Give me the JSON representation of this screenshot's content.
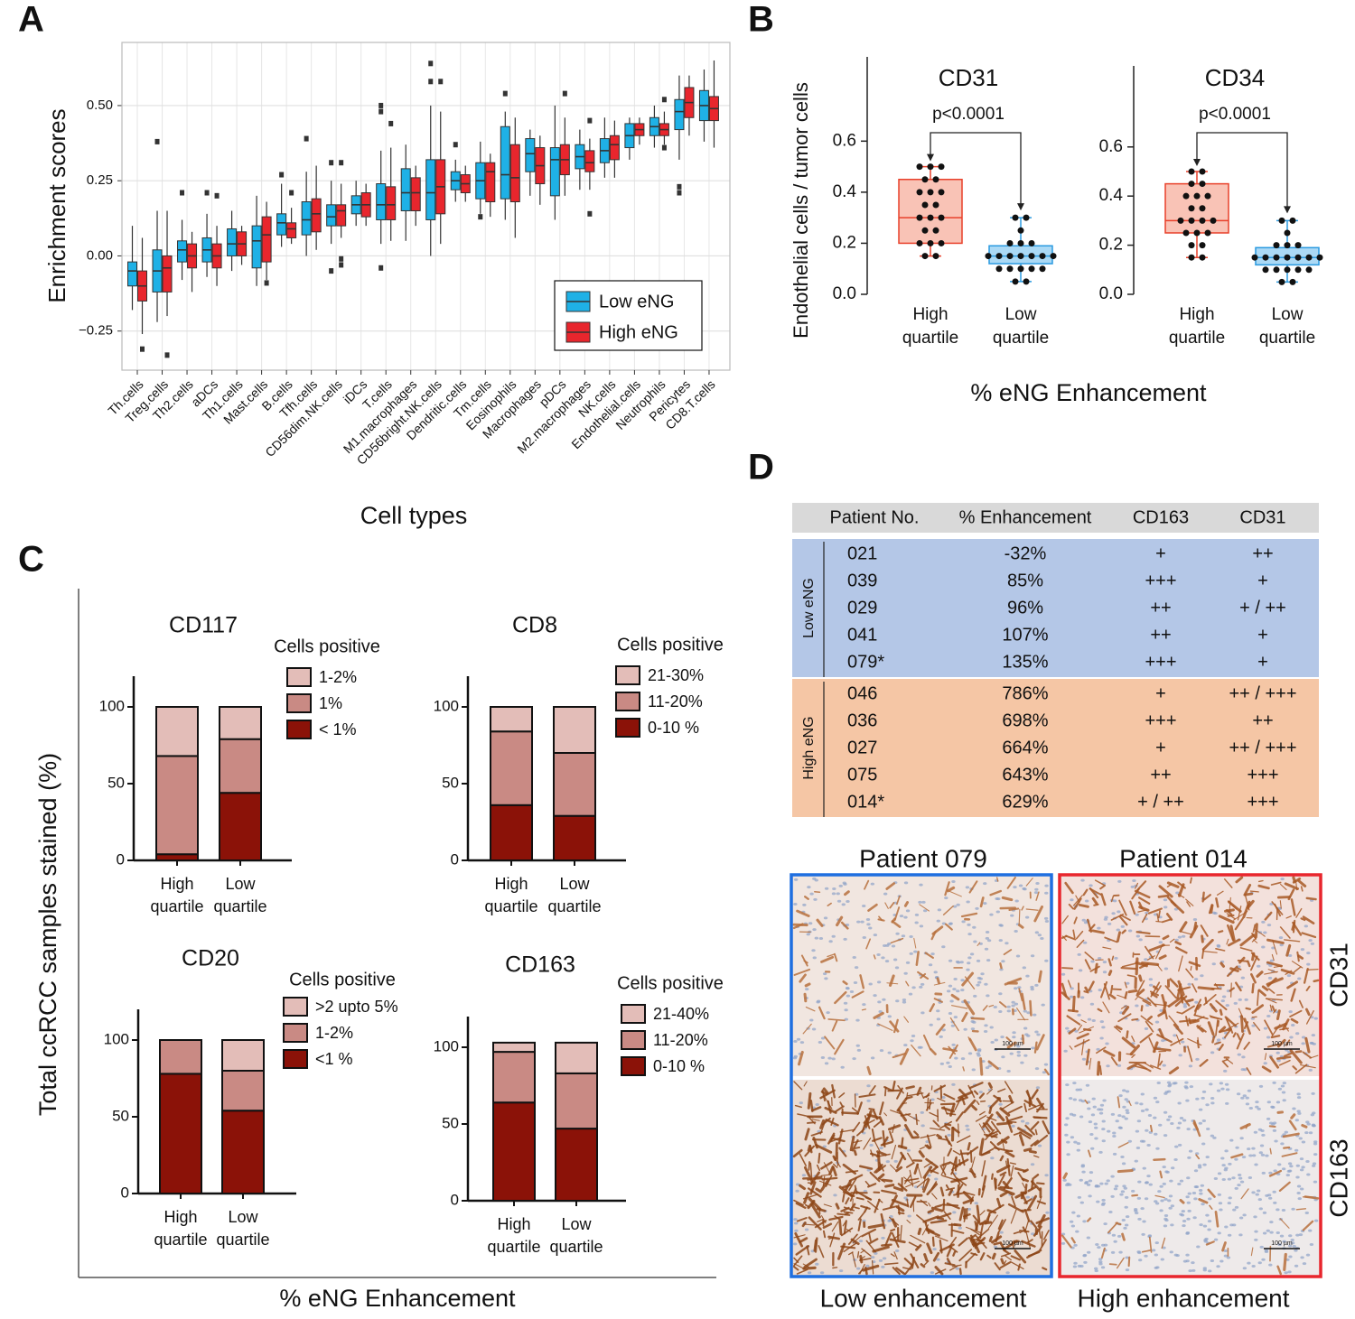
{
  "panel_labels": [
    "A",
    "B",
    "C",
    "D"
  ],
  "chart_data": [
    {
      "type": "box",
      "y_label": "Enrichment scores",
      "x_label": "Cell types",
      "categories": [
        "Th.cells",
        "Treg.cells",
        "Th2.cells",
        "aDCs",
        "Th1.cells",
        "Mast.cells",
        "B.cells",
        "Tfh.cells",
        "CD56dim.NK.cells",
        "iDCs",
        "T.cells",
        "M1.macrophages",
        "CD56bright.NK.cells",
        "Dendritic.cells",
        "Tm.cells",
        "Eosinophils",
        "Macrophages",
        "pDCs",
        "M2.macrophages",
        "NK.cells",
        "Endothelial.cells",
        "Neutrophils",
        "Pericytes",
        "CD8.T.cells"
      ],
      "category_colors": [
        "#222222",
        "#222222",
        "#222222",
        "#222222",
        "#222222",
        "#e8141b",
        "#1e9be0",
        "#222222",
        "#222222",
        "#222222",
        "#222222",
        "#222222",
        "#222222",
        "#222222",
        "#222222",
        "#1e9be0",
        "#1e9be0",
        "#222222",
        "#222222",
        "#222222",
        "#e8141b",
        "#222222",
        "#e8141b",
        "#222222"
      ],
      "ylim": [
        -0.38,
        0.71
      ],
      "yticks": [
        {
          "value": -0.25,
          "label": "−0.25"
        },
        {
          "value": 0,
          "label": "0.00"
        },
        0.25,
        {
          "value": 0.5,
          "label": "0.50"
        }
      ],
      "grid": true,
      "legend": "bottom-right",
      "series": [
        {
          "name": "Low eNG",
          "color": "#1fb1e6",
          "min": [
            -0.18,
            -0.22,
            -0.08,
            -0.07,
            -0.05,
            -0.1,
            0.03,
            0.0,
            0.04,
            0.1,
            0.04,
            0.05,
            0.0,
            0.18,
            0.14,
            0.12,
            0.2,
            0.12,
            0.22,
            0.26,
            0.32,
            0.36,
            0.32,
            0.38
          ],
          "q1": [
            -0.1,
            -0.12,
            -0.02,
            -0.02,
            0.0,
            -0.04,
            0.07,
            0.07,
            0.1,
            0.14,
            0.12,
            0.15,
            0.12,
            0.22,
            0.19,
            0.19,
            0.28,
            0.2,
            0.29,
            0.31,
            0.36,
            0.4,
            0.42,
            0.45
          ],
          "median": [
            -0.05,
            -0.05,
            0.02,
            0.02,
            0.04,
            0.05,
            0.11,
            0.12,
            0.13,
            0.17,
            0.17,
            0.21,
            0.21,
            0.25,
            0.25,
            0.27,
            0.34,
            0.32,
            0.33,
            0.35,
            0.4,
            0.43,
            0.48,
            0.5
          ],
          "q3": [
            -0.02,
            0.02,
            0.05,
            0.06,
            0.09,
            0.1,
            0.14,
            0.18,
            0.17,
            0.2,
            0.24,
            0.29,
            0.32,
            0.28,
            0.31,
            0.43,
            0.39,
            0.36,
            0.37,
            0.39,
            0.44,
            0.46,
            0.52,
            0.55
          ],
          "max": [
            0.1,
            0.15,
            0.12,
            0.14,
            0.15,
            0.2,
            0.24,
            0.28,
            0.25,
            0.25,
            0.35,
            0.37,
            0.5,
            0.32,
            0.38,
            0.48,
            0.42,
            0.5,
            0.42,
            0.46,
            0.46,
            0.5,
            0.6,
            0.62
          ],
          "outliers": [
            [],
            [
              0.38
            ],
            [
              0.21
            ],
            [
              0.21
            ],
            [],
            [],
            [
              0.27
            ],
            [
              0.39
            ],
            [
              0.31,
              -0.05
            ],
            [],
            [
              0.5,
              0.48,
              -0.04
            ],
            [],
            [
              0.64,
              0.58
            ],
            [
              0.37
            ],
            [
              0.13
            ],
            [
              0.54
            ],
            [],
            [],
            [],
            [],
            [],
            [],
            [
              0.23,
              0.21
            ],
            []
          ]
        },
        {
          "name": "High eNG",
          "color": "#e8262d",
          "min": [
            -0.26,
            -0.2,
            -0.12,
            -0.1,
            -0.03,
            -0.08,
            0.04,
            0.02,
            0.06,
            0.1,
            0.05,
            0.1,
            0.04,
            0.18,
            0.13,
            0.06,
            0.17,
            0.2,
            0.22,
            0.26,
            0.37,
            0.37,
            0.4,
            0.36
          ],
          "q1": [
            -0.15,
            -0.12,
            -0.04,
            -0.04,
            0.0,
            -0.02,
            0.06,
            0.08,
            0.1,
            0.13,
            0.12,
            0.15,
            0.14,
            0.21,
            0.18,
            0.18,
            0.24,
            0.27,
            0.28,
            0.32,
            0.4,
            0.4,
            0.46,
            0.45
          ],
          "median": [
            -0.1,
            -0.04,
            0.0,
            0.0,
            0.04,
            0.07,
            0.09,
            0.14,
            0.15,
            0.17,
            0.17,
            0.21,
            0.23,
            0.24,
            0.28,
            0.26,
            0.3,
            0.32,
            0.31,
            0.37,
            0.42,
            0.42,
            0.51,
            0.49
          ],
          "q3": [
            -0.05,
            0.0,
            0.04,
            0.04,
            0.08,
            0.13,
            0.11,
            0.19,
            0.17,
            0.21,
            0.23,
            0.26,
            0.32,
            0.27,
            0.31,
            0.37,
            0.36,
            0.37,
            0.35,
            0.4,
            0.44,
            0.44,
            0.56,
            0.53
          ],
          "max": [
            0.06,
            0.15,
            0.08,
            0.1,
            0.1,
            0.18,
            0.16,
            0.3,
            0.24,
            0.24,
            0.36,
            0.3,
            0.48,
            0.3,
            0.34,
            0.46,
            0.4,
            0.46,
            0.39,
            0.45,
            0.46,
            0.48,
            0.6,
            0.65
          ],
          "outliers": [
            [
              -0.31
            ],
            [
              -0.33
            ],
            [],
            [
              0.2
            ],
            [],
            [
              -0.09
            ],
            [
              0.21
            ],
            [],
            [
              0.31,
              -0.03,
              -0.01
            ],
            [],
            [
              0.44
            ],
            [],
            [
              0.58
            ],
            [],
            [],
            [],
            [],
            [
              0.54
            ],
            [
              0.45,
              0.14
            ],
            [],
            [],
            [
              0.52,
              0.36
            ],
            [],
            []
          ]
        }
      ]
    },
    {
      "type": "box_scatter",
      "title": "CD31",
      "annotation": "p<0.0001",
      "categories": [
        "High quartile",
        "Low quartile"
      ],
      "colors": [
        "#e8402a",
        "#2a9ae0"
      ],
      "fills": [
        "#f9c3b6",
        "#abd9f5"
      ],
      "min": [
        0.15,
        0.05
      ],
      "q1": [
        0.2,
        0.12
      ],
      "median": [
        0.3,
        0.15
      ],
      "q3": [
        0.45,
        0.19
      ],
      "max": [
        0.5,
        0.3
      ],
      "points": [
        [
          0.5,
          0.5,
          0.5,
          0.45,
          0.45,
          0.4,
          0.4,
          0.4,
          0.35,
          0.35,
          0.3,
          0.3,
          0.3,
          0.25,
          0.25,
          0.2,
          0.2,
          0.2,
          0.15,
          0.15
        ],
        [
          0.3,
          0.3,
          0.25,
          0.2,
          0.2,
          0.2,
          0.15,
          0.15,
          0.15,
          0.15,
          0.15,
          0.15,
          0.15,
          0.1,
          0.1,
          0.1,
          0.1,
          0.1,
          0.05,
          0.05
        ]
      ],
      "ylim": [
        0,
        0.93
      ],
      "yticks": [
        {
          "value": 0,
          "label": "0.0"
        },
        0.2,
        0.4,
        0.6
      ]
    },
    {
      "type": "box_scatter",
      "title": "CD34",
      "annotation": "p<0.0001",
      "categories": [
        "High quartile",
        "Low quartile"
      ],
      "colors": [
        "#e8402a",
        "#2a9ae0"
      ],
      "fills": [
        "#f9c3b6",
        "#abd9f5"
      ],
      "min": [
        0.15,
        0.05
      ],
      "q1": [
        0.25,
        0.12
      ],
      "median": [
        0.3,
        0.15
      ],
      "q3": [
        0.45,
        0.19
      ],
      "max": [
        0.5,
        0.3
      ],
      "points": [
        [
          0.5,
          0.5,
          0.45,
          0.45,
          0.4,
          0.4,
          0.4,
          0.35,
          0.35,
          0.3,
          0.3,
          0.3,
          0.3,
          0.25,
          0.25,
          0.25,
          0.2,
          0.2,
          0.15,
          0.15
        ],
        [
          0.3,
          0.3,
          0.25,
          0.2,
          0.2,
          0.2,
          0.15,
          0.15,
          0.15,
          0.15,
          0.15,
          0.15,
          0.15,
          0.1,
          0.1,
          0.1,
          0.1,
          0.1,
          0.05,
          0.05
        ]
      ],
      "ylim": [
        0,
        0.93
      ],
      "yticks": [
        {
          "value": 0,
          "label": "0.0"
        },
        0.2,
        0.4,
        0.6
      ]
    },
    {
      "type": "stacked_bar",
      "title": "CD117",
      "legend_title": "Cells positive",
      "categories": [
        "High quartile",
        "Low quartile"
      ],
      "series": [
        {
          "name": "< 1%",
          "color": "#8b1208",
          "values": [
            4,
            44
          ]
        },
        {
          "name": "1%",
          "color": "#c98a84",
          "values": [
            64,
            35
          ]
        },
        {
          "name": "1-2%",
          "color": "#e3bdb8",
          "values": [
            32,
            21
          ]
        }
      ],
      "ylim": [
        0,
        120
      ],
      "yticks": [
        0,
        50,
        100
      ]
    },
    {
      "type": "stacked_bar",
      "title": "CD8",
      "legend_title": "Cells positive",
      "categories": [
        "High quartile",
        "Low quartile"
      ],
      "series": [
        {
          "name": "0-10 %",
          "color": "#8b1208",
          "values": [
            36,
            29
          ]
        },
        {
          "name": "11-20%",
          "color": "#c98a84",
          "values": [
            48,
            41
          ]
        },
        {
          "name": "21-30%",
          "color": "#e3bdb8",
          "values": [
            16,
            30
          ]
        }
      ],
      "ylim": [
        0,
        120
      ],
      "yticks": [
        0,
        50,
        100
      ]
    },
    {
      "type": "stacked_bar",
      "title": "CD20",
      "legend_title": "Cells positive",
      "categories": [
        "High quartile",
        "Low quartile"
      ],
      "series": [
        {
          "name": "<1 %",
          "color": "#8b1208",
          "values": [
            78,
            54
          ]
        },
        {
          "name": "1-2%",
          "color": "#c98a84",
          "values": [
            22,
            26
          ]
        },
        {
          "name": ">2 upto 5%",
          "color": "#e3bdb8",
          "values": [
            0,
            20
          ]
        }
      ],
      "ylim": [
        0,
        120
      ],
      "yticks": [
        0,
        50,
        100
      ]
    },
    {
      "type": "stacked_bar",
      "title": "CD163",
      "legend_title": "Cells positive",
      "categories": [
        "High quartile",
        "Low quartile"
      ],
      "series": [
        {
          "name": "0-10 %",
          "color": "#8b1208",
          "values": [
            64,
            47
          ]
        },
        {
          "name": "11-20%",
          "color": "#c98a84",
          "values": [
            33,
            36
          ]
        },
        {
          "name": "21-40%",
          "color": "#e3bdb8",
          "values": [
            6,
            20
          ]
        }
      ],
      "ylim": [
        0,
        120
      ],
      "yticks": [
        0,
        50,
        100
      ]
    }
  ],
  "panel_b": {
    "y_label": "Endothelial cells / tumor cells",
    "x_label": "% eNG Enhancement"
  },
  "panel_c": {
    "y_label": "Total ccRCC samples stained (%)",
    "x_label": "% eNG Enhancement"
  },
  "table": {
    "header": [
      "Patient No.",
      "% Enhancement",
      "CD163",
      "CD31"
    ],
    "groups": [
      {
        "label": "Low eNG",
        "rows": [
          [
            "021",
            "-32%",
            "+",
            "++"
          ],
          [
            "039",
            "85%",
            "+++",
            "+"
          ],
          [
            "029",
            "96%",
            "++",
            "+ / ++"
          ],
          [
            "041",
            "107%",
            "++",
            "+"
          ],
          [
            "079*",
            "135%",
            "+++",
            "+"
          ]
        ]
      },
      {
        "label": "High eNG",
        "rows": [
          [
            "046",
            "786%",
            "+",
            "++ / +++"
          ],
          [
            "036",
            "698%",
            "+++",
            "++"
          ],
          [
            "027",
            "664%",
            "+",
            "++ / +++"
          ],
          [
            "075",
            "643%",
            "++",
            "+++"
          ],
          [
            "014*",
            "629%",
            "+ / ++",
            "+++"
          ]
        ]
      }
    ]
  },
  "images": {
    "columns": [
      "Patient 079",
      "Patient 014"
    ],
    "rows": [
      "CD31",
      "CD163"
    ],
    "captions": [
      "Low enhancement",
      "High enhancement"
    ],
    "scale_bar": "100 µm"
  }
}
